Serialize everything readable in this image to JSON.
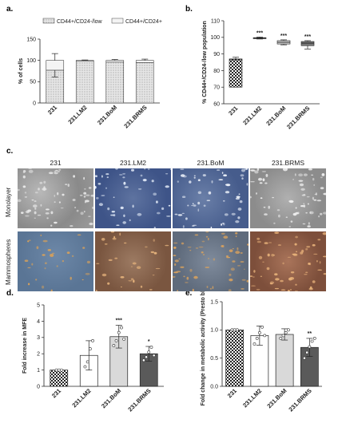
{
  "colors": {
    "checker_fill": "#2a2a2a",
    "white_bar": "#ffffff",
    "light_gray_bar": "#d9d9d9",
    "dark_gray_bar": "#5a5a5a",
    "axis": "#222222",
    "stipple_fill": "#bdbdbd"
  },
  "panels": {
    "a": "a.",
    "b": "b.",
    "c": "c.",
    "d": "d.",
    "e": "e."
  },
  "micrograph_grid": {
    "columns": [
      "231",
      "231.LM2",
      "231.BoM",
      "231.BRMS"
    ],
    "rows": [
      "Monolayer",
      "Mammospheres"
    ]
  },
  "chart_data": [
    {
      "id": "a",
      "type": "bar",
      "stacked": true,
      "categories": [
        "231",
        "231.LM2",
        "231.BoM",
        "231.BRMS"
      ],
      "series": [
        {
          "name": "CD44+/CD24-/low",
          "values": [
            77,
            98,
            96,
            95
          ],
          "errors": [
            16,
            1,
            2,
            3
          ]
        },
        {
          "name": "CD44+/CD24+",
          "values": [
            23,
            2,
            4,
            5
          ]
        }
      ],
      "ylabel": "% of cells",
      "ylim": [
        0,
        150
      ],
      "yticks": [
        0,
        50,
        100,
        150
      ],
      "legend": "top"
    },
    {
      "id": "b",
      "type": "box",
      "categories": [
        "231",
        "231.LM2",
        "231.BoM",
        "231.BRMS"
      ],
      "boxes": [
        {
          "min": 70,
          "q1": 70,
          "median": 86.5,
          "q3": 87,
          "max": 88
        },
        {
          "min": 99,
          "q1": 99.2,
          "median": 99.5,
          "q3": 99.8,
          "max": 100.2
        },
        {
          "min": 95.5,
          "q1": 96,
          "median": 97,
          "q3": 98,
          "max": 98.5
        },
        {
          "min": 93,
          "q1": 95,
          "median": 96.5,
          "q3": 97.5,
          "max": 98
        }
      ],
      "annotations": [
        "",
        "***",
        "***",
        "***"
      ],
      "ylabel": "% CD44+/CD24-/low population",
      "ylim": [
        60,
        110
      ],
      "yticks": [
        60,
        70,
        80,
        90,
        100,
        110
      ]
    },
    {
      "id": "d",
      "type": "bar",
      "categories": [
        "231",
        "231.LM2",
        "231.BoM",
        "231.BRMS"
      ],
      "values": [
        1.0,
        1.9,
        3.05,
        2.0
      ],
      "errors": [
        0,
        0.9,
        0.7,
        0.45
      ],
      "points": [
        [
          1,
          1,
          1
        ],
        [
          1.2,
          1.5,
          2.3,
          2.8
        ],
        [
          2.5,
          2.8,
          3.3,
          3.6,
          2.9
        ],
        [
          1.6,
          1.8,
          2.1,
          2.4,
          1.9
        ]
      ],
      "annotations": [
        "",
        "",
        "***",
        "*"
      ],
      "ylabel": "Fold increase in MFE",
      "ylim": [
        0,
        5
      ],
      "yticks": [
        0,
        1,
        2,
        3,
        4,
        5
      ]
    },
    {
      "id": "e",
      "type": "bar",
      "categories": [
        "231",
        "231.LM2",
        "231.BoM",
        "231.BRMS"
      ],
      "values": [
        1.0,
        0.9,
        0.92,
        0.69
      ],
      "errors": [
        0,
        0.17,
        0.1,
        0.16
      ],
      "points": [
        [
          1,
          1,
          1
        ],
        [
          0.75,
          0.85,
          0.95,
          1.05,
          0.9
        ],
        [
          0.85,
          0.9,
          0.95,
          1.0
        ],
        [
          0.5,
          0.6,
          0.7,
          0.8,
          0.85
        ]
      ],
      "annotations": [
        "",
        "",
        "",
        "**"
      ],
      "ylabel": "Fold change in metabolic activity (Presto blue)",
      "ylim": [
        0,
        1.5
      ],
      "yticks": [
        0.0,
        0.5,
        1.0,
        1.5
      ]
    }
  ]
}
